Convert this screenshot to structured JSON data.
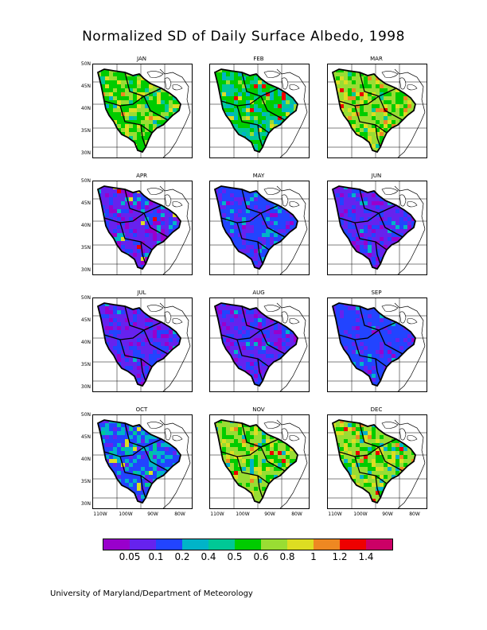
{
  "title": "Normalized SD of Daily Surface Albedo, 1998",
  "footer": "University of Maryland/Department of Meteorology",
  "latitude_ticks": [
    "50N",
    "45N",
    "40N",
    "35N",
    "30N"
  ],
  "longitude_ticks_left": [
    "110W",
    "100W",
    "90W",
    "80W"
  ],
  "longitude_ticks_other": [
    "110W",
    "100W",
    "90W",
    "80W"
  ],
  "months": [
    {
      "label": "JAN",
      "dominant": "mixed-green-yellow"
    },
    {
      "label": "FEB",
      "dominant": "mixed-green-red"
    },
    {
      "label": "MAR",
      "dominant": "mixed-green-yellow-red"
    },
    {
      "label": "APR",
      "dominant": "blue-purple-with-snow-edge"
    },
    {
      "label": "MAY",
      "dominant": "blue"
    },
    {
      "label": "JUN",
      "dominant": "blue-purple"
    },
    {
      "label": "JUL",
      "dominant": "blue-purple"
    },
    {
      "label": "AUG",
      "dominant": "blue-purple"
    },
    {
      "label": "SEP",
      "dominant": "blue"
    },
    {
      "label": "OCT",
      "dominant": "blue-cyan"
    },
    {
      "label": "NOV",
      "dominant": "green-yellow-red"
    },
    {
      "label": "DEC",
      "dominant": "green-yellow-red"
    }
  ],
  "colorbar": {
    "colors": [
      "#9900cc",
      "#6622ee",
      "#2244ff",
      "#00b4c8",
      "#00c896",
      "#00cc00",
      "#99dd33",
      "#dddd22",
      "#ee8822",
      "#ee0000",
      "#cc0066"
    ],
    "labels": [
      "0.05",
      "0.1",
      "0.2",
      "0.4",
      "0.5",
      "0.6",
      "0.8",
      "1",
      "1.2",
      "1.4"
    ]
  },
  "palettes": {
    "mixed-green-yellow": [
      "#00cc00",
      "#99dd33",
      "#dddd22",
      "#00c896",
      "#00b4c8",
      "#ee8822"
    ],
    "mixed-green-red": [
      "#00cc00",
      "#00c896",
      "#00b4c8",
      "#99dd33",
      "#ee0000",
      "#dddd22"
    ],
    "mixed-green-yellow-red": [
      "#99dd33",
      "#00cc00",
      "#dddd22",
      "#ee8822",
      "#00c896",
      "#ee0000"
    ],
    "blue-purple-with-snow-edge": [
      "#6622ee",
      "#2244ff",
      "#9900cc",
      "#00b4c8",
      "#dddd22",
      "#ee0000"
    ],
    "blue": [
      "#2244ff",
      "#6622ee",
      "#2244ff",
      "#00b4c8",
      "#9900cc",
      "#2244ff"
    ],
    "blue-purple": [
      "#6622ee",
      "#2244ff",
      "#9900cc",
      "#6622ee",
      "#2244ff",
      "#00b4c8"
    ],
    "blue-cyan": [
      "#2244ff",
      "#00b4c8",
      "#6622ee",
      "#00c896",
      "#2244ff",
      "#dddd22"
    ],
    "green-yellow-red": [
      "#99dd33",
      "#00cc00",
      "#dddd22",
      "#00b4c8",
      "#ee8822",
      "#ee0000"
    ]
  }
}
